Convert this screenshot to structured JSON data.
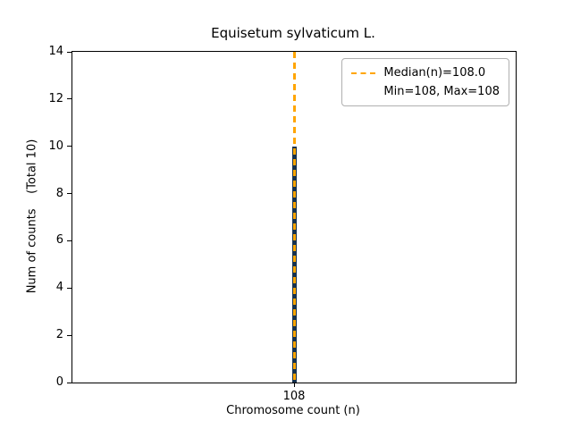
{
  "chart_data": {
    "type": "bar",
    "title": "Equisetum sylvaticum L.",
    "xlabel": "Chromosome count (n)",
    "ylabel": "Num of counts    (Total 10)",
    "categories": [
      "108"
    ],
    "values": [
      10
    ],
    "ylim": [
      0,
      14
    ],
    "yticks": [
      0,
      2,
      4,
      6,
      8,
      10,
      12,
      14
    ],
    "grid": false,
    "bar_color": "#16324f",
    "median_line": {
      "value": 108.0,
      "x_category": "108",
      "color": "#ffa500",
      "style": "dashed"
    },
    "legend": {
      "position": "upper right",
      "entries": [
        {
          "label": "Median(n)=108.0",
          "handle": "dashed-line",
          "handle_color": "#ffa500"
        },
        {
          "label": "Min=108, Max=108",
          "handle": "none"
        }
      ]
    }
  }
}
